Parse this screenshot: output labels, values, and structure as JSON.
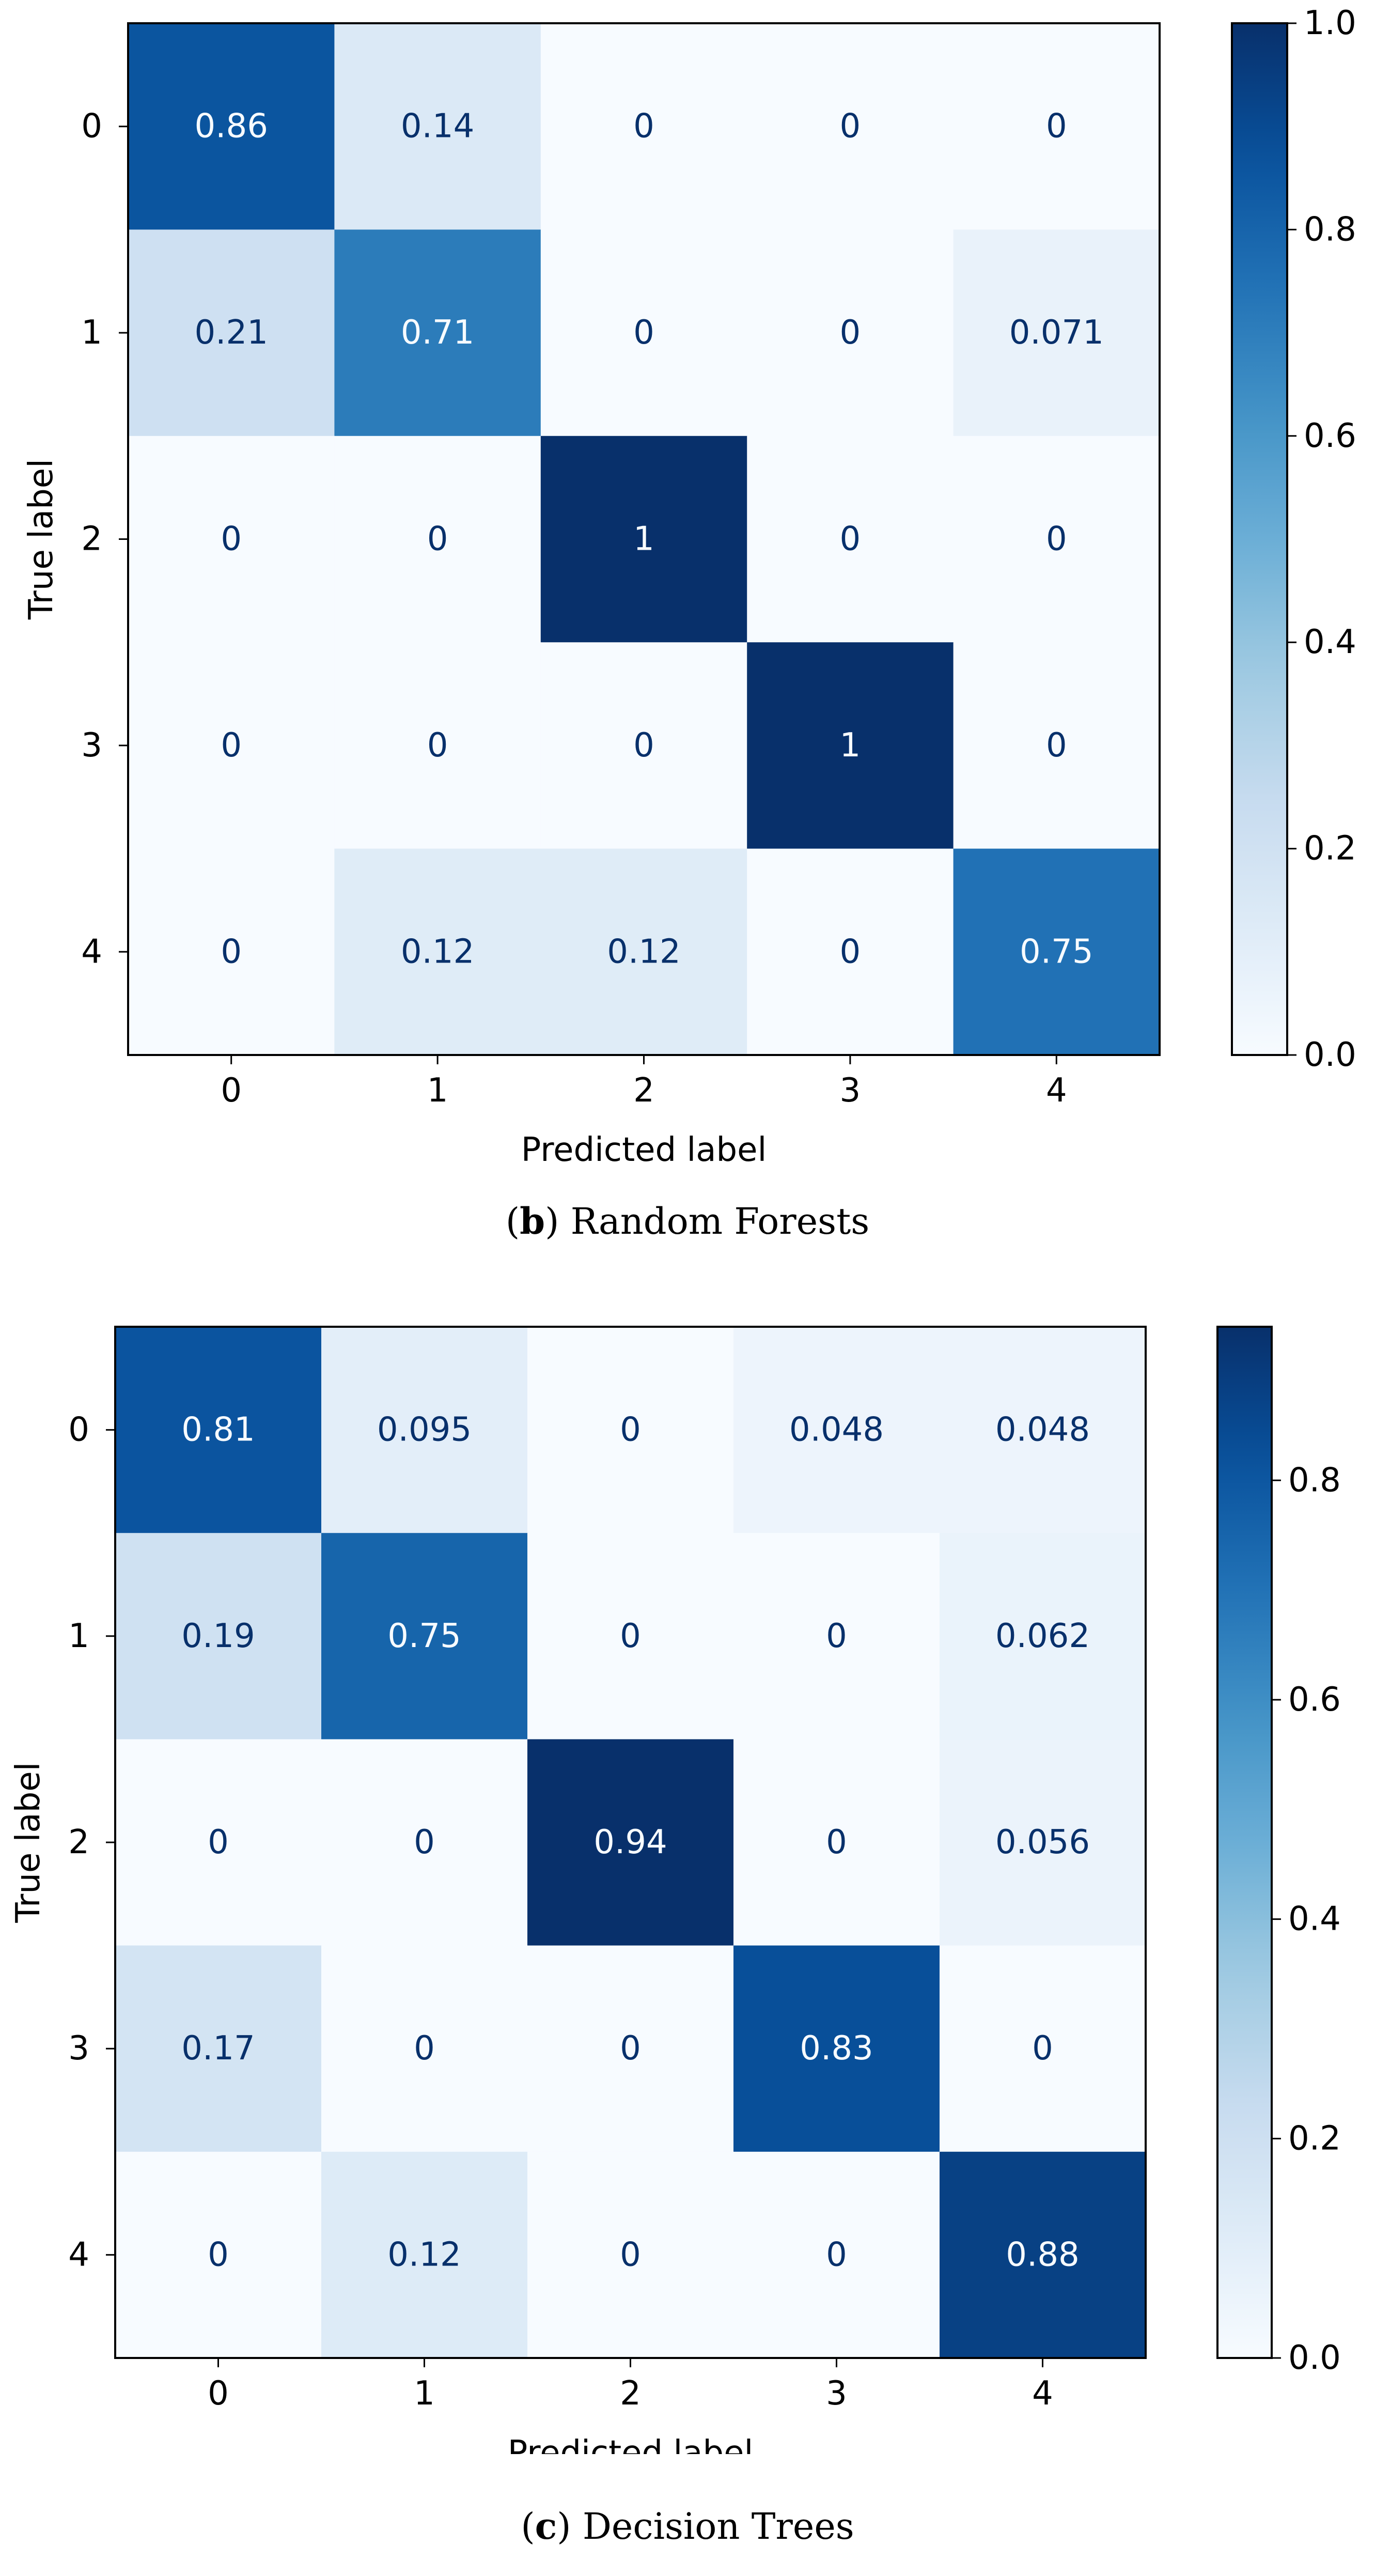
{
  "chart_data": [
    {
      "type": "heatmap",
      "xlabel": "Predicted label",
      "ylabel": "True label",
      "x_categories": [
        "0",
        "1",
        "2",
        "3",
        "4"
      ],
      "y_categories": [
        "0",
        "1",
        "2",
        "3",
        "4"
      ],
      "values": [
        [
          0.86,
          0.14,
          0,
          0,
          0
        ],
        [
          0.21,
          0.71,
          0,
          0,
          0.071
        ],
        [
          0,
          0,
          1,
          0,
          0
        ],
        [
          0,
          0,
          0,
          1,
          0
        ],
        [
          0,
          0.12,
          0.12,
          0,
          0.75
        ]
      ],
      "value_labels": [
        [
          "0.86",
          "0.14",
          "0",
          "0",
          "0"
        ],
        [
          "0.21",
          "0.71",
          "0",
          "0",
          "0.071"
        ],
        [
          "0",
          "0",
          "1",
          "0",
          "0"
        ],
        [
          "0",
          "0",
          "0",
          "1",
          "0"
        ],
        [
          "0",
          "0.12",
          "0.12",
          "0",
          "0.75"
        ]
      ],
      "colorbar": {
        "range": [
          0,
          1
        ],
        "ticks": [
          "0.0",
          "0.2",
          "0.4",
          "0.6",
          "0.8",
          "1.0"
        ],
        "colormap": "Blues"
      },
      "caption_letter": "b",
      "caption_text": " Random Forests"
    },
    {
      "type": "heatmap",
      "xlabel": "Predicted label",
      "ylabel": "True label",
      "x_categories": [
        "0",
        "1",
        "2",
        "3",
        "4"
      ],
      "y_categories": [
        "0",
        "1",
        "2",
        "3",
        "4"
      ],
      "values": [
        [
          0.81,
          0.095,
          0,
          0.048,
          0.048
        ],
        [
          0.19,
          0.75,
          0,
          0,
          0.062
        ],
        [
          0,
          0,
          0.94,
          0,
          0.056
        ],
        [
          0.17,
          0,
          0,
          0.83,
          0
        ],
        [
          0,
          0.12,
          0,
          0,
          0.88
        ]
      ],
      "value_labels": [
        [
          "0.81",
          "0.095",
          "0",
          "0.048",
          "0.048"
        ],
        [
          "0.19",
          "0.75",
          "0",
          "0",
          "0.062"
        ],
        [
          "0",
          "0",
          "0.94",
          "0",
          "0.056"
        ],
        [
          "0.17",
          "0",
          "0",
          "0.83",
          "0"
        ],
        [
          "0",
          "0.12",
          "0",
          "0",
          "0.88"
        ]
      ],
      "colorbar": {
        "range": [
          0,
          0.94
        ],
        "ticks": [
          "0.0",
          "0.2",
          "0.4",
          "0.6",
          "0.8"
        ],
        "colormap": "Blues"
      },
      "caption_letter": "c",
      "caption_text": " Decision Trees"
    }
  ]
}
